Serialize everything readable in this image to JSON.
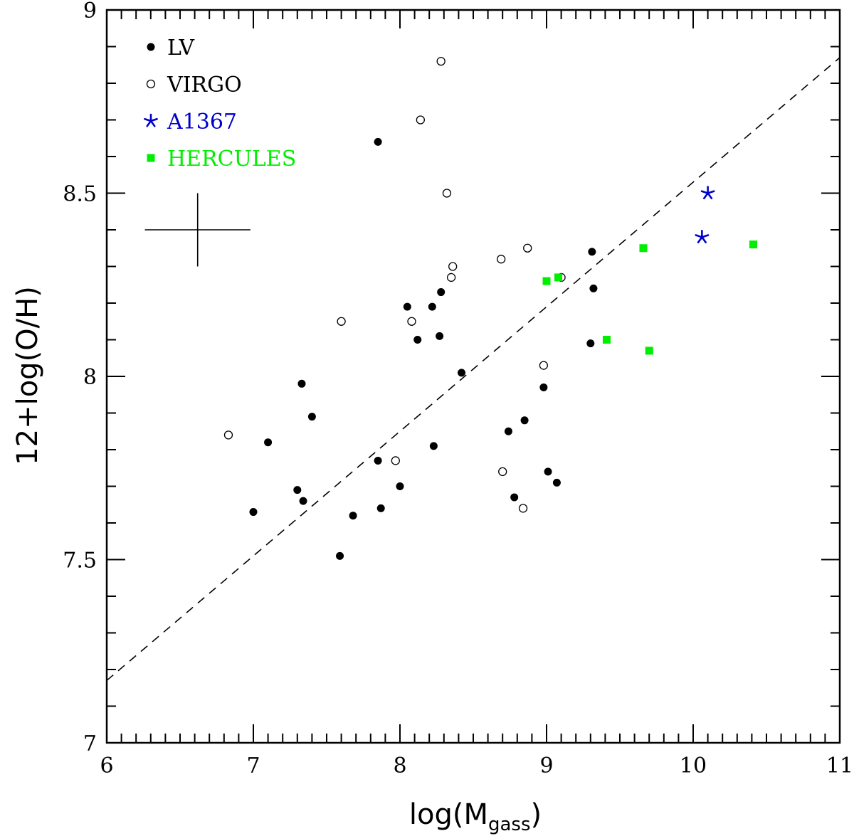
{
  "chart_data": {
    "type": "scatter",
    "xlabel": "log(M",
    "xlabel_sub": "gass",
    "xlabel_end": ")",
    "ylabel": "12+log(O/H)",
    "xlim": [
      6,
      11
    ],
    "ylim": [
      7,
      9
    ],
    "x_ticks": [
      "6",
      "7",
      "8",
      "9",
      "10",
      "11"
    ],
    "y_ticks": [
      "7",
      "7.5",
      "8",
      "8.5",
      "9"
    ],
    "legend_position": "top-left",
    "series": [
      {
        "name": "LV",
        "marker": "filled-circle",
        "color": "#000000",
        "points": [
          [
            7.0,
            7.63
          ],
          [
            7.1,
            7.82
          ],
          [
            7.3,
            7.69
          ],
          [
            7.33,
            7.98
          ],
          [
            7.34,
            7.66
          ],
          [
            7.4,
            7.89
          ],
          [
            7.59,
            7.51
          ],
          [
            7.68,
            7.62
          ],
          [
            7.85,
            8.64
          ],
          [
            7.85,
            7.77
          ],
          [
            7.87,
            7.64
          ],
          [
            8.0,
            7.7
          ],
          [
            8.05,
            8.19
          ],
          [
            8.12,
            8.1
          ],
          [
            8.22,
            8.19
          ],
          [
            8.23,
            7.81
          ],
          [
            8.27,
            8.11
          ],
          [
            8.28,
            8.23
          ],
          [
            8.42,
            8.01
          ],
          [
            8.74,
            7.85
          ],
          [
            8.78,
            7.67
          ],
          [
            8.85,
            7.88
          ],
          [
            8.87,
            8.35
          ],
          [
            8.98,
            7.97
          ],
          [
            9.01,
            7.74
          ],
          [
            9.07,
            7.71
          ],
          [
            9.3,
            8.09
          ],
          [
            9.31,
            8.34
          ],
          [
            9.32,
            8.24
          ]
        ]
      },
      {
        "name": "VIRGO",
        "marker": "open-circle",
        "color": "#000000",
        "points": [
          [
            6.83,
            7.84
          ],
          [
            7.6,
            8.15
          ],
          [
            7.97,
            7.77
          ],
          [
            8.08,
            8.15
          ],
          [
            8.14,
            8.7
          ],
          [
            8.28,
            8.86
          ],
          [
            8.32,
            8.5
          ],
          [
            8.35,
            8.27
          ],
          [
            8.36,
            8.3
          ],
          [
            8.69,
            8.32
          ],
          [
            8.7,
            7.74
          ],
          [
            8.84,
            7.64
          ],
          [
            8.87,
            8.35
          ],
          [
            8.98,
            8.03
          ],
          [
            9.1,
            8.27
          ]
        ]
      },
      {
        "name": "A1367",
        "marker": "asterisk",
        "color": "#0000cc",
        "points": [
          [
            10.06,
            8.38
          ],
          [
            10.1,
            8.5
          ]
        ]
      },
      {
        "name": "HERCULES",
        "marker": "filled-square",
        "color": "#00ee00",
        "points": [
          [
            9.0,
            8.26
          ],
          [
            9.08,
            8.27
          ],
          [
            9.41,
            8.1
          ],
          [
            9.66,
            8.35
          ],
          [
            9.7,
            8.07
          ],
          [
            10.41,
            8.36
          ]
        ]
      }
    ],
    "fit_line": {
      "style": "dashed",
      "x": [
        6,
        11
      ],
      "y": [
        7.17,
        8.87
      ]
    },
    "error_bar": {
      "x_center": 6.62,
      "y_center": 8.4,
      "x_half_width": 0.36,
      "y_half_height": 0.1
    }
  }
}
